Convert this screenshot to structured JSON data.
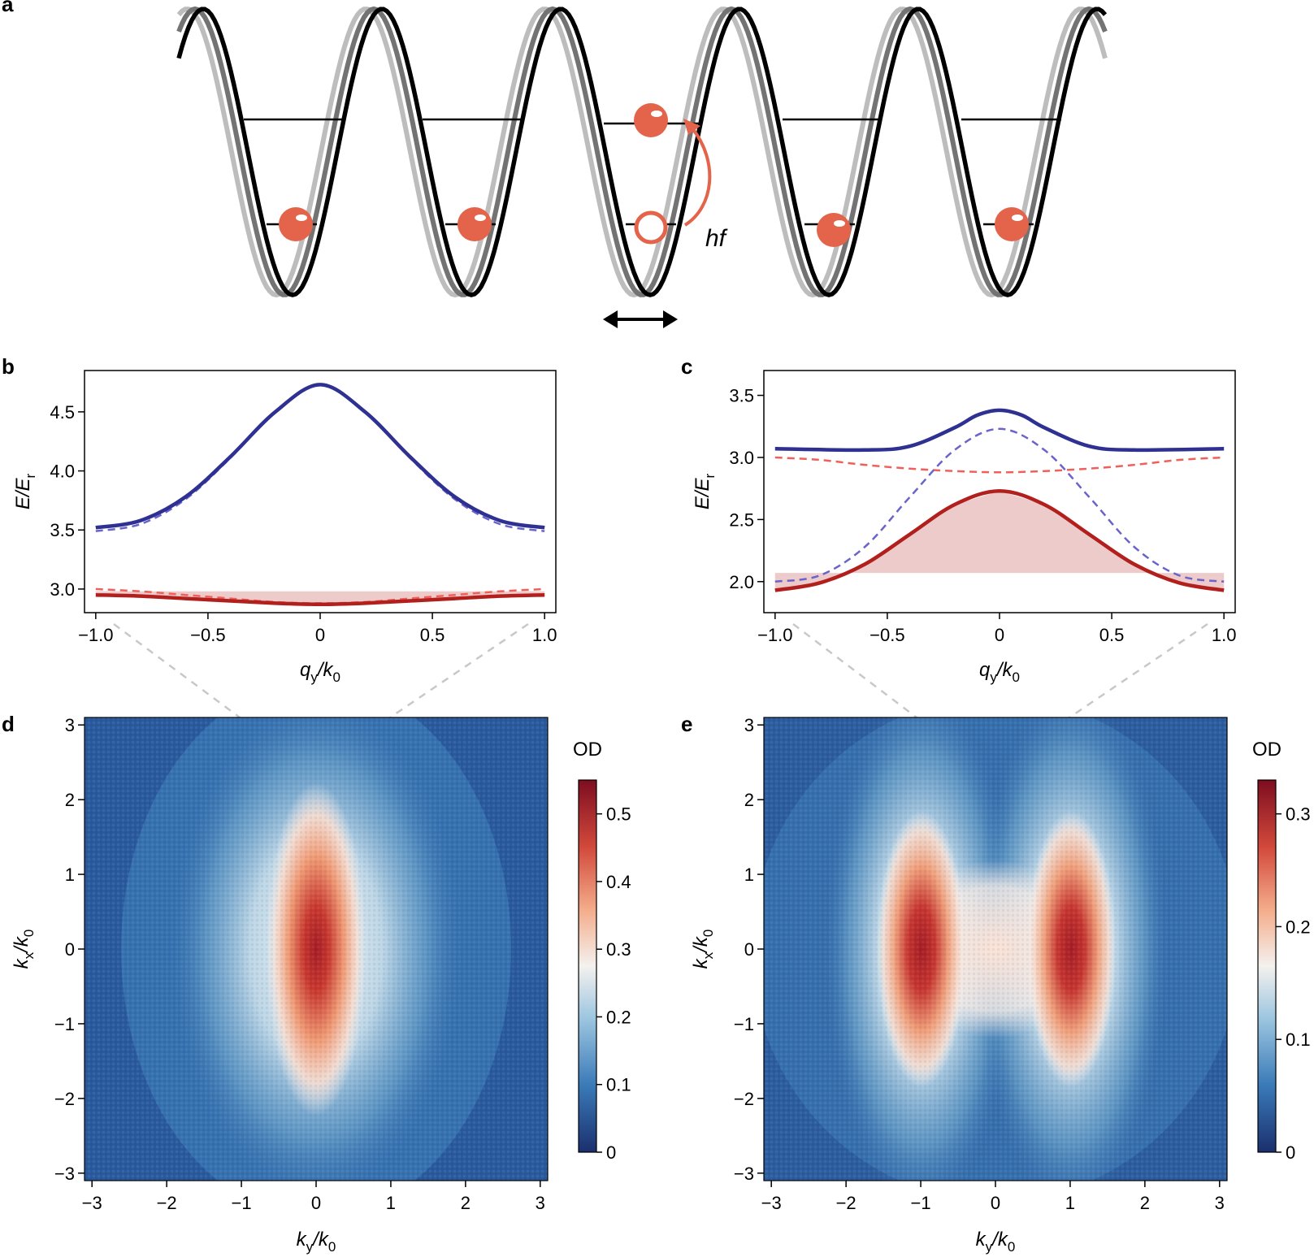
{
  "panels": {
    "a": {
      "label": "a",
      "photon_label": "hf",
      "colors": {
        "lattice_current": "#000000",
        "lattice_mid": "#737373",
        "lattice_light": "#bdbdbd",
        "atom": "#e3644a"
      }
    },
    "b": {
      "label": "b"
    },
    "c": {
      "label": "c"
    },
    "d": {
      "label": "d"
    },
    "e": {
      "label": "e"
    }
  },
  "chart_data": [
    {
      "panel": "b",
      "type": "line",
      "ylabel": "E/E_r",
      "ylabel_main": "E/E",
      "ylabel_sub": "r",
      "xlabel_main": "q",
      "xlabel_sub1": "y",
      "xlabel_mid": "/k",
      "xlabel_sub2": "0",
      "xlim": [
        -1.05,
        1.05
      ],
      "ylim": [
        2.8,
        4.85
      ],
      "xticks": [
        -1.0,
        -0.5,
        0,
        0.5,
        1.0
      ],
      "xtick_labels": [
        "−1.0",
        "−0.5",
        "0",
        "0.5",
        "1.0"
      ],
      "yticks": [
        3.0,
        3.5,
        4.0,
        4.5
      ],
      "ytick_labels": [
        "3.0",
        "3.5",
        "4.0",
        "4.5"
      ],
      "series": [
        {
          "style": "solid",
          "color": "#2e3192",
          "x": [
            -1.0,
            -0.8,
            -0.6,
            -0.4,
            -0.2,
            0,
            0.2,
            0.4,
            0.6,
            0.8,
            1.0
          ],
          "values": [
            3.52,
            3.58,
            3.78,
            4.12,
            4.5,
            4.73,
            4.5,
            4.12,
            3.78,
            3.58,
            3.52
          ]
        },
        {
          "style": "dashed",
          "color": "#6a63cc",
          "x": [
            -1.0,
            -0.8,
            -0.6,
            -0.4,
            -0.2,
            0,
            0.2,
            0.4,
            0.6,
            0.8,
            1.0
          ],
          "values": [
            3.49,
            3.55,
            3.76,
            4.11,
            4.5,
            4.73,
            4.5,
            4.11,
            3.76,
            3.55,
            3.49
          ]
        },
        {
          "style": "solid",
          "color": "#b2201d",
          "x": [
            -1.0,
            -0.8,
            -0.6,
            -0.4,
            -0.2,
            0,
            0.2,
            0.4,
            0.6,
            0.8,
            1.0
          ],
          "values": [
            2.95,
            2.94,
            2.92,
            2.9,
            2.88,
            2.87,
            2.88,
            2.9,
            2.92,
            2.94,
            2.95
          ]
        },
        {
          "style": "dashed",
          "color": "#f0605a",
          "x": [
            -1.0,
            -0.8,
            -0.6,
            -0.4,
            -0.2,
            0,
            0.2,
            0.4,
            0.6,
            0.8,
            1.0
          ],
          "values": [
            3.0,
            2.98,
            2.95,
            2.92,
            2.89,
            2.88,
            2.89,
            2.92,
            2.95,
            2.98,
            3.0
          ]
        }
      ],
      "shaded_band": {
        "color": "#e7b9b9",
        "x": [
          -1.0,
          1.0
        ],
        "y_top": 2.98
      }
    },
    {
      "panel": "c",
      "type": "line",
      "ylabel": "E/E_r",
      "ylabel_main": "E/E",
      "ylabel_sub": "r",
      "xlabel_main": "q",
      "xlabel_sub1": "y",
      "xlabel_mid": "/k",
      "xlabel_sub2": "0",
      "xlim": [
        -1.05,
        1.05
      ],
      "ylim": [
        1.75,
        3.7
      ],
      "xticks": [
        -1.0,
        -0.5,
        0,
        0.5,
        1.0
      ],
      "xtick_labels": [
        "−1.0",
        "−0.5",
        "0",
        "0.5",
        "1.0"
      ],
      "yticks": [
        2.0,
        2.5,
        3.0,
        3.5
      ],
      "ytick_labels": [
        "2.0",
        "2.5",
        "3.0",
        "3.5"
      ],
      "series": [
        {
          "style": "solid",
          "color": "#2e3192",
          "x": [
            -1.0,
            -0.6,
            -0.4,
            -0.2,
            -0.1,
            0,
            0.1,
            0.2,
            0.4,
            0.6,
            1.0
          ],
          "values": [
            3.07,
            3.06,
            3.09,
            3.24,
            3.34,
            3.38,
            3.34,
            3.24,
            3.09,
            3.06,
            3.07
          ]
        },
        {
          "style": "dashed",
          "color": "#6a63cc",
          "x": [
            -1.0,
            -0.8,
            -0.6,
            -0.4,
            -0.2,
            0,
            0.2,
            0.4,
            0.6,
            0.8,
            1.0
          ],
          "values": [
            2.0,
            2.05,
            2.28,
            2.68,
            3.06,
            3.23,
            3.06,
            2.68,
            2.28,
            2.05,
            2.0
          ]
        },
        {
          "style": "solid",
          "color": "#b2201d",
          "x": [
            -1.0,
            -0.8,
            -0.6,
            -0.4,
            -0.2,
            0,
            0.2,
            0.4,
            0.6,
            0.8,
            1.0
          ],
          "values": [
            1.93,
            1.99,
            2.14,
            2.38,
            2.62,
            2.73,
            2.62,
            2.38,
            2.14,
            1.99,
            1.93
          ]
        },
        {
          "style": "dashed",
          "color": "#f0605a",
          "x": [
            -1.0,
            -0.8,
            -0.6,
            -0.4,
            -0.2,
            0,
            0.2,
            0.4,
            0.6,
            0.8,
            1.0
          ],
          "values": [
            3.0,
            2.98,
            2.94,
            2.91,
            2.89,
            2.88,
            2.89,
            2.91,
            2.94,
            2.98,
            3.0
          ]
        }
      ],
      "shaded_band": {
        "color": "#e7b9b9",
        "x": [
          -1.0,
          1.0
        ],
        "y_top": 2.07
      }
    },
    {
      "panel": "d",
      "type": "heatmap",
      "xlabel_main": "k",
      "xlabel_sub1": "y",
      "xlabel_mid": "/k",
      "xlabel_sub2": "0",
      "ylabel_main": "k",
      "ylabel_sub1": "x",
      "ylabel_mid": "/k",
      "ylabel_sub2": "0",
      "xlim": [
        -3.1,
        3.1
      ],
      "ylim": [
        -3.1,
        3.1
      ],
      "xticks": [
        -3,
        -2,
        -1,
        0,
        1,
        2,
        3
      ],
      "xtick_labels": [
        "−3",
        "−2",
        "−1",
        "0",
        "1",
        "2",
        "3"
      ],
      "yticks": [
        -3,
        -2,
        -1,
        0,
        1,
        2,
        3
      ],
      "ytick_labels": [
        "−3",
        "−2",
        "−1",
        "0",
        "1",
        "2",
        "3"
      ],
      "colorbar_label": "OD",
      "colorbar_range": [
        0,
        0.55
      ],
      "colorbar_ticks": [
        0,
        0.1,
        0.2,
        0.3,
        0.4,
        0.5
      ],
      "colorbar_tick_labels": [
        "0",
        "0.1",
        "0.2",
        "0.3",
        "0.4",
        "0.5"
      ],
      "peaks": [
        {
          "ky": 0,
          "kx": 0,
          "od": 0.52
        }
      ]
    },
    {
      "panel": "e",
      "type": "heatmap",
      "xlabel_main": "k",
      "xlabel_sub1": "y",
      "xlabel_mid": "/k",
      "xlabel_sub2": "0",
      "ylabel_main": "k",
      "ylabel_sub1": "x",
      "ylabel_mid": "/k",
      "ylabel_sub2": "0",
      "xlim": [
        -3.1,
        3.1
      ],
      "ylim": [
        -3.1,
        3.1
      ],
      "xticks": [
        -3,
        -2,
        -1,
        0,
        1,
        2,
        3
      ],
      "xtick_labels": [
        "−3",
        "−2",
        "−1",
        "0",
        "1",
        "2",
        "3"
      ],
      "yticks": [
        -3,
        -2,
        -1,
        0,
        1,
        2,
        3
      ],
      "ytick_labels": [
        "−3",
        "−2",
        "−1",
        "0",
        "1",
        "2",
        "3"
      ],
      "colorbar_label": "OD",
      "colorbar_range": [
        0,
        0.33
      ],
      "colorbar_ticks": [
        0,
        0.1,
        0.2,
        0.3
      ],
      "colorbar_tick_labels": [
        "0",
        "0.1",
        "0.2",
        "0.3"
      ],
      "peaks": [
        {
          "ky": -1,
          "kx": 0,
          "od": 0.32
        },
        {
          "ky": 1,
          "kx": 0,
          "od": 0.32
        }
      ]
    }
  ]
}
